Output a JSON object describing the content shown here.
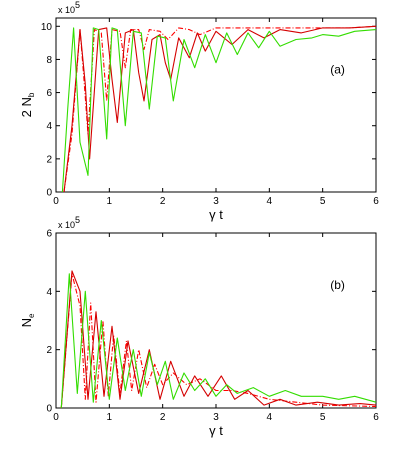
{
  "chart_data": [
    {
      "type": "line",
      "panel_label": "(a)",
      "ylabel": "2 N",
      "ylabel_sub": "b",
      "xlabel": "γ t",
      "exponent_base": "x 10",
      "exponent_power": "5",
      "xlim": [
        0,
        6
      ],
      "ylim": [
        0,
        10.5
      ],
      "xticks": [
        "0",
        "1",
        "2",
        "3",
        "4",
        "5",
        "6"
      ],
      "yticks": [
        "0",
        "2",
        "4",
        "6",
        "8",
        "10"
      ],
      "ytick_values": [
        0,
        2,
        4,
        6,
        8,
        10
      ],
      "series": [
        {
          "style": "dashdot",
          "color": "#ff0000",
          "x": [
            0.15,
            0.3,
            0.45,
            0.52,
            0.6,
            0.72,
            0.85,
            0.95,
            1.05,
            1.2,
            1.3,
            1.4,
            1.55,
            1.65,
            1.75,
            1.95,
            2.1,
            2.3,
            2.5,
            2.7,
            3.0,
            3.5,
            4.0,
            4.5,
            5.0,
            5.5,
            6.0
          ],
          "y": [
            0.0,
            3.5,
            9.8,
            7.0,
            3.5,
            9.8,
            9.6,
            5.5,
            9.8,
            9.7,
            7.5,
            9.8,
            9.8,
            8.6,
            9.8,
            9.7,
            9.2,
            9.9,
            9.8,
            9.5,
            9.9,
            9.9,
            9.9,
            9.9,
            9.9,
            9.9,
            10.0
          ]
        },
        {
          "style": "solid",
          "color": "#d40000",
          "x": [
            0.15,
            0.3,
            0.45,
            0.55,
            0.63,
            0.8,
            0.95,
            1.05,
            1.15,
            1.3,
            1.45,
            1.55,
            1.65,
            1.8,
            1.95,
            2.05,
            2.15,
            2.3,
            2.5,
            2.65,
            2.8,
            3.0,
            3.3,
            3.6,
            3.9,
            4.2,
            4.6,
            5.0,
            5.5,
            6.0
          ],
          "y": [
            0.0,
            4.0,
            9.8,
            6.5,
            2.0,
            9.8,
            9.9,
            6.8,
            4.2,
            9.6,
            9.8,
            7.2,
            5.5,
            9.2,
            9.5,
            7.8,
            6.8,
            9.3,
            8.1,
            9.6,
            8.5,
            9.7,
            8.9,
            9.8,
            9.3,
            9.8,
            9.6,
            9.9,
            9.9,
            10.0
          ]
        },
        {
          "style": "solid",
          "color": "#33dd00",
          "x": [
            0.12,
            0.22,
            0.33,
            0.45,
            0.6,
            0.7,
            0.8,
            0.95,
            1.05,
            1.15,
            1.3,
            1.45,
            1.6,
            1.75,
            1.9,
            2.05,
            2.2,
            2.4,
            2.6,
            2.8,
            3.0,
            3.2,
            3.4,
            3.6,
            3.8,
            4.0,
            4.2,
            4.5,
            4.8,
            5.0,
            5.3,
            5.6,
            6.0
          ],
          "y": [
            0.0,
            5.0,
            9.9,
            3.0,
            1.0,
            9.9,
            9.8,
            3.2,
            9.9,
            9.8,
            4.0,
            9.7,
            9.6,
            5.0,
            9.4,
            9.3,
            5.5,
            9.2,
            7.5,
            9.5,
            7.8,
            9.6,
            8.3,
            9.6,
            8.7,
            9.7,
            8.8,
            9.2,
            9.3,
            9.5,
            9.4,
            9.7,
            9.8
          ]
        }
      ]
    },
    {
      "type": "line",
      "panel_label": "(b)",
      "ylabel": "N",
      "ylabel_sub": "e",
      "xlabel": "γ t",
      "exponent_base": "x 10",
      "exponent_power": "5",
      "xlim": [
        0,
        6
      ],
      "ylim": [
        0,
        6
      ],
      "xticks": [
        "0",
        "1",
        "2",
        "3",
        "4",
        "5",
        "6"
      ],
      "yticks": [
        "0",
        "2",
        "4",
        "6"
      ],
      "ytick_values": [
        0,
        2,
        4,
        6
      ],
      "series": [
        {
          "style": "dashdot",
          "color": "#ff0000",
          "x": [
            0.1,
            0.3,
            0.45,
            0.55,
            0.65,
            0.75,
            0.88,
            0.98,
            1.08,
            1.2,
            1.32,
            1.42,
            1.55,
            1.7,
            1.85,
            2.0,
            2.2,
            2.45,
            2.7,
            3.0,
            3.3,
            3.6,
            4.0,
            4.5,
            5.0,
            6.0
          ],
          "y": [
            0.0,
            4.6,
            3.5,
            0.3,
            3.6,
            0.2,
            3.0,
            0.4,
            2.5,
            0.5,
            2.3,
            0.6,
            2.0,
            0.7,
            1.5,
            0.8,
            1.2,
            0.8,
            1.0,
            0.6,
            0.6,
            0.5,
            0.3,
            0.2,
            0.1,
            0.05
          ]
        },
        {
          "style": "solid",
          "color": "#d40000",
          "x": [
            0.1,
            0.3,
            0.45,
            0.6,
            0.75,
            0.9,
            1.05,
            1.2,
            1.35,
            1.55,
            1.75,
            1.95,
            2.15,
            2.4,
            2.6,
            2.85,
            3.1,
            3.35,
            3.6,
            3.9,
            4.2,
            4.5,
            4.9,
            5.3,
            5.7,
            6.0
          ],
          "y": [
            0.0,
            4.7,
            4.0,
            0.3,
            3.3,
            0.4,
            2.8,
            0.3,
            2.3,
            0.5,
            2.0,
            0.3,
            1.6,
            0.4,
            1.1,
            0.4,
            1.1,
            0.3,
            0.6,
            0.1,
            0.3,
            0.1,
            0.2,
            0.1,
            0.15,
            0.1
          ]
        },
        {
          "style": "solid",
          "color": "#33dd00",
          "x": [
            0.1,
            0.25,
            0.4,
            0.55,
            0.7,
            0.85,
            1.0,
            1.15,
            1.3,
            1.45,
            1.6,
            1.75,
            1.9,
            2.05,
            2.2,
            2.4,
            2.6,
            2.8,
            3.0,
            3.2,
            3.4,
            3.7,
            4.0,
            4.3,
            4.6,
            5.0,
            5.3,
            5.6,
            6.0
          ],
          "y": [
            0.0,
            4.6,
            0.5,
            4.0,
            0.2,
            3.0,
            0.3,
            2.4,
            0.6,
            2.0,
            0.4,
            1.9,
            0.8,
            1.6,
            0.3,
            1.2,
            0.6,
            1.0,
            0.4,
            0.8,
            0.5,
            0.7,
            0.4,
            0.6,
            0.4,
            0.4,
            0.3,
            0.4,
            0.2
          ]
        }
      ]
    }
  ]
}
